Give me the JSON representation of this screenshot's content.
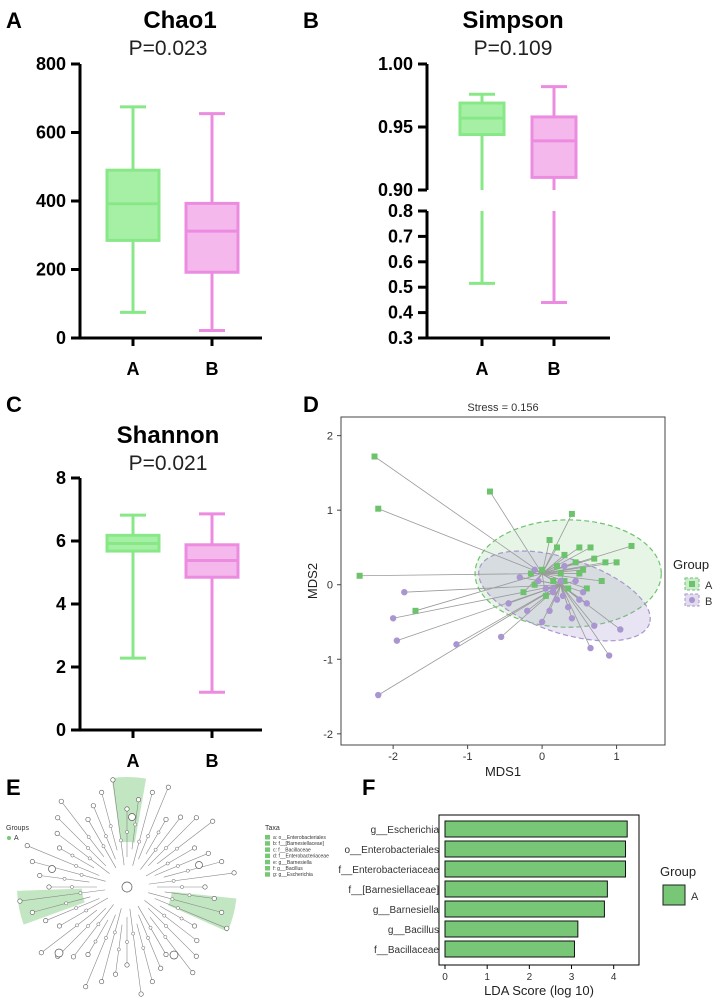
{
  "colors": {
    "groupA_box": "#a6f0a6",
    "groupA_line": "#88e888",
    "groupB_box": "#f5b8ec",
    "groupB_line": "#ec8ce0",
    "mdsA": "#6cc36c",
    "mdsB": "#a995cf",
    "lda": "#77c777"
  },
  "panel_labels": {
    "a": "A",
    "b": "B",
    "c": "C",
    "d": "D",
    "e": "E",
    "f": "F"
  },
  "chart_data": [
    {
      "id": "chao1",
      "type": "box",
      "title": "Chao1",
      "subtitle": "P=0.023",
      "ylim": [
        0,
        800
      ],
      "yticks": [
        0,
        200,
        400,
        600,
        800
      ],
      "categories": [
        "A",
        "B"
      ],
      "series": [
        {
          "name": "A",
          "min": 75,
          "q1": 285,
          "median": 392,
          "q3": 490,
          "max": 675
        },
        {
          "name": "B",
          "min": 22,
          "q1": 192,
          "median": 312,
          "q3": 393,
          "max": 655
        }
      ]
    },
    {
      "id": "simpson",
      "type": "box",
      "title": "Simpson",
      "subtitle": "P=0.109",
      "axis_break": true,
      "upper_ylim": [
        0.9,
        1.0
      ],
      "upper_yticks": [
        "0.90",
        "0.95",
        "1.00"
      ],
      "lower_ylim": [
        0.3,
        0.8
      ],
      "lower_yticks": [
        "0.3",
        "0.4",
        "0.5",
        "0.6",
        "0.7",
        "0.8"
      ],
      "categories": [
        "A",
        "B"
      ],
      "series": [
        {
          "name": "A",
          "min": 0.515,
          "q1": 0.944,
          "median": 0.957,
          "q3": 0.969,
          "max": 0.976
        },
        {
          "name": "B",
          "min": 0.44,
          "q1": 0.91,
          "median": 0.939,
          "q3": 0.958,
          "max": 0.982
        }
      ]
    },
    {
      "id": "shannon",
      "type": "box",
      "title": "Shannon",
      "subtitle": "P=0.021",
      "ylim": [
        0,
        8
      ],
      "yticks": [
        0,
        2,
        4,
        6,
        8
      ],
      "categories": [
        "A",
        "B"
      ],
      "series": [
        {
          "name": "A",
          "min": 2.28,
          "q1": 5.68,
          "median": 5.92,
          "q3": 6.18,
          "max": 6.82
        },
        {
          "name": "B",
          "min": 1.2,
          "q1": 4.85,
          "median": 5.38,
          "q3": 5.88,
          "max": 6.86
        }
      ]
    },
    {
      "id": "nmds",
      "type": "scatter",
      "title": "Stress = 0.156",
      "xlabel": "MDS1",
      "ylabel": "MDS2",
      "xlim": [
        -2.7,
        1.65
      ],
      "ylim": [
        -2.15,
        2.25
      ],
      "xticks": [
        -2,
        -1,
        0,
        1
      ],
      "yticks": [
        -2,
        -1,
        0,
        1,
        2
      ],
      "legend": {
        "title": "Group",
        "labels": [
          "A",
          "B"
        ]
      },
      "centroids": {
        "A": [
          0.0,
          0.15
        ],
        "B": [
          0.25,
          0.0
        ]
      },
      "ellipses": [
        {
          "group": "A",
          "cx": 0.35,
          "cy": 0.15,
          "rx": 1.25,
          "ry": 0.72,
          "angle": 0
        },
        {
          "group": "B",
          "cx": 0.3,
          "cy": -0.15,
          "rx": 1.2,
          "ry": 0.5,
          "angle": 18
        }
      ],
      "series": [
        {
          "name": "A",
          "points": [
            [
              -2.25,
              1.72
            ],
            [
              -2.2,
              1.02
            ],
            [
              -2.45,
              0.12
            ],
            [
              -1.7,
              -0.35
            ],
            [
              -0.7,
              1.25
            ],
            [
              0.4,
              0.95
            ],
            [
              1.2,
              0.52
            ],
            [
              1.0,
              0.3
            ],
            [
              0.8,
              0.05
            ],
            [
              0.55,
              0.2
            ],
            [
              0.3,
              0.4
            ],
            [
              0.1,
              0.6
            ],
            [
              0.2,
              0.5
            ],
            [
              0.5,
              0.5
            ],
            [
              0.65,
              0.5
            ],
            [
              0.7,
              0.35
            ],
            [
              0.45,
              0.3
            ],
            [
              0.2,
              0.25
            ],
            [
              0.0,
              0.2
            ],
            [
              0.15,
              0.05
            ],
            [
              0.3,
              0.05
            ],
            [
              -0.1,
              0.0
            ],
            [
              -0.25,
              -0.1
            ],
            [
              0.05,
              -0.15
            ],
            [
              0.6,
              -0.05
            ],
            [
              0.85,
              0.3
            ],
            [
              -0.15,
              0.15
            ],
            [
              0.35,
              -0.05
            ],
            [
              0.25,
              0.15
            ],
            [
              0.5,
              0.15
            ]
          ]
        },
        {
          "name": "B",
          "points": [
            [
              -2.2,
              -1.48
            ],
            [
              -1.95,
              -0.75
            ],
            [
              -2.0,
              -0.45
            ],
            [
              -1.85,
              -0.1
            ],
            [
              -1.15,
              -0.8
            ],
            [
              -0.45,
              -0.25
            ],
            [
              -0.3,
              0.1
            ],
            [
              -0.55,
              -0.7
            ],
            [
              0.05,
              -0.05
            ],
            [
              0.15,
              -0.1
            ],
            [
              0.25,
              0.05
            ],
            [
              0.35,
              -0.3
            ],
            [
              0.5,
              -0.2
            ],
            [
              0.6,
              -0.25
            ],
            [
              0.7,
              -0.55
            ],
            [
              0.9,
              -0.95
            ],
            [
              1.05,
              -0.6
            ],
            [
              0.65,
              -0.85
            ],
            [
              0.1,
              -0.35
            ],
            [
              0.0,
              -0.5
            ],
            [
              -0.2,
              -0.35
            ],
            [
              0.2,
              -0.2
            ],
            [
              0.45,
              0.05
            ],
            [
              0.3,
              0.25
            ],
            [
              -0.1,
              0.2
            ],
            [
              0.4,
              -0.45
            ],
            [
              0.15,
              -0.05
            ],
            [
              -0.05,
              0.05
            ],
            [
              0.55,
              -0.1
            ],
            [
              0.28,
              -0.15
            ]
          ]
        }
      ]
    },
    {
      "id": "lda",
      "type": "bar",
      "orientation": "horizontal",
      "xlabel": "LDA Score (log 10)",
      "xlim": [
        0,
        4.6
      ],
      "xticks": [
        0,
        1,
        2,
        3,
        4
      ],
      "categories": [
        "g__Escherichia",
        "o__Enterobacteriales",
        "f__Enterobacteriaceae",
        "f__[Barnesiellaceae]",
        "g__Barnesiella",
        "g__Bacillus",
        "f__Bacillaceae"
      ],
      "values": [
        4.32,
        4.28,
        4.28,
        3.85,
        3.78,
        3.15,
        3.07
      ],
      "legend": {
        "title": "Group",
        "labels": [
          "A"
        ]
      }
    }
  ],
  "cladogram": {
    "groups_title": "Groups",
    "groups": [
      "A"
    ],
    "taxa_title": "Taxa",
    "taxa": [
      "a: o__Enterobacteriales",
      "b: f__[Barnesiellaceae]",
      "c: f__Bacillaceae",
      "d: f__Enterobacteriaceae",
      "e: g__Barnesiella",
      "f: g__Bacillus",
      "g: g__Escherichia"
    ]
  }
}
